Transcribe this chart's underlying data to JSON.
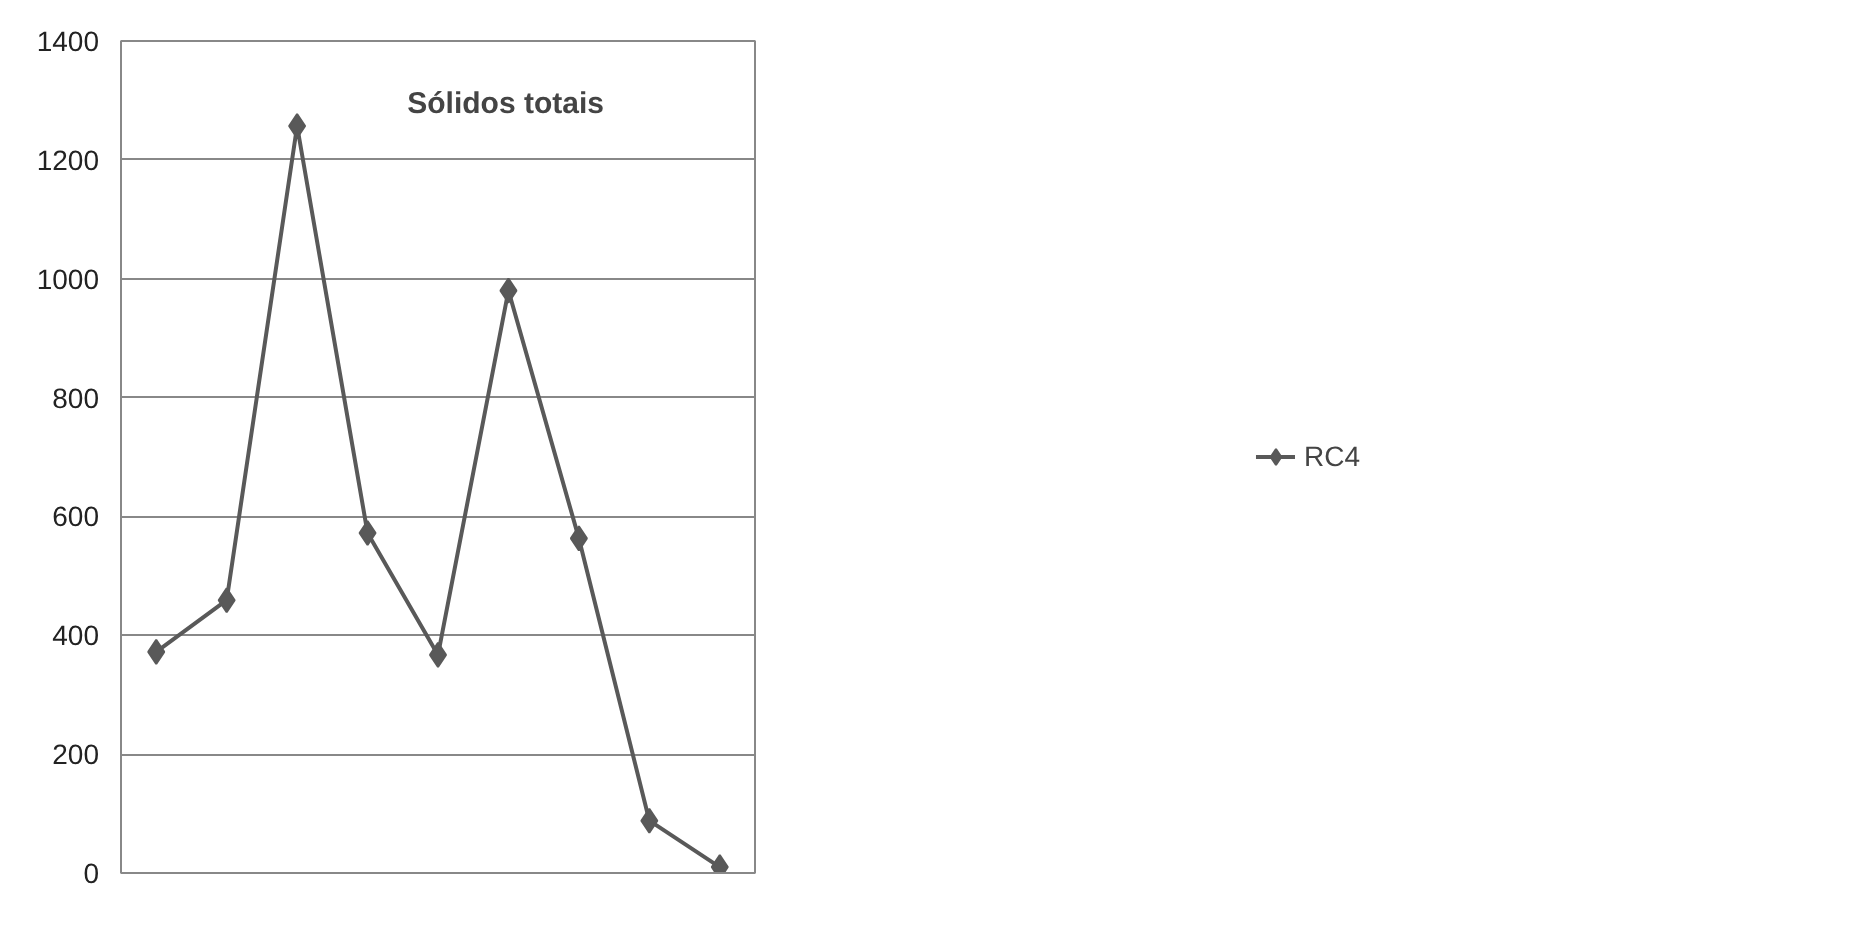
{
  "chart_data": {
    "type": "line",
    "title": "Sólidos totais",
    "categories": [
      null,
      null,
      null,
      null,
      null,
      null,
      null,
      null,
      null
    ],
    "series": [
      {
        "name": "RC4",
        "color": "#595959",
        "values": [
          372,
          459,
          1257,
          572,
          367,
          980,
          563,
          88,
          10
        ]
      }
    ],
    "ylim": [
      0,
      1400
    ],
    "yticks": [
      0,
      200,
      400,
      600,
      800,
      1000,
      1200,
      1400
    ],
    "grid": "y",
    "legend": "right",
    "marker": "diamond",
    "line_style": "solid"
  }
}
